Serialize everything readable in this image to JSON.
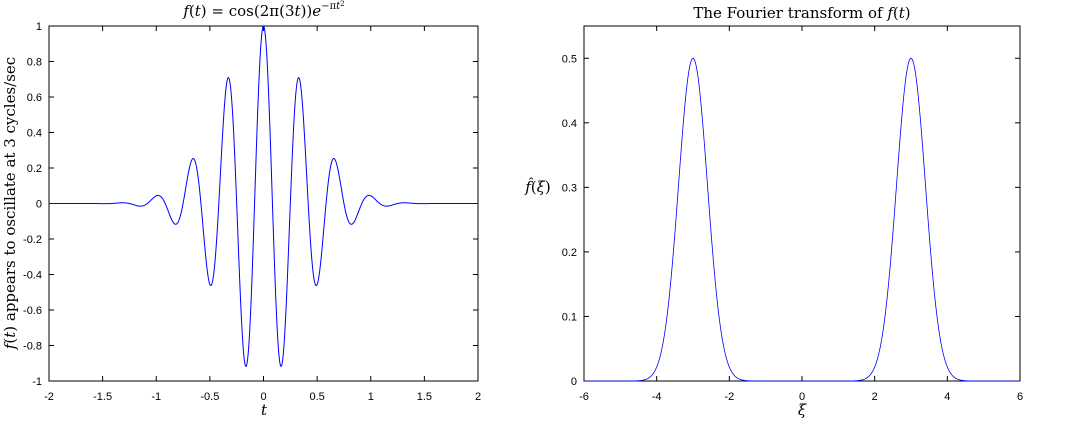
{
  "chart_data": [
    {
      "type": "line",
      "title": "f(t) = cos(2π(3t))e^{−πt²}",
      "xlabel": "t",
      "ylabel": "f(t) appears to oscillate at 3 cycles/sec",
      "xlim": [
        -2,
        2
      ],
      "ylim": [
        -1,
        1
      ],
      "xticks": [
        "-2",
        "-1.5",
        "-1",
        "-0.5",
        "0",
        "0.5",
        "1",
        "1.5",
        "2"
      ],
      "yticks": [
        "-1",
        "-0.8",
        "-0.6",
        "-0.4",
        "-0.2",
        "0",
        "0.2",
        "0.4",
        "0.6",
        "0.8",
        "1"
      ],
      "grid": false,
      "series": [
        {
          "color": "#0000ff",
          "x": [
            -2.0,
            -1.5,
            -1.333,
            -1.167,
            -1.0,
            -0.833,
            -0.667,
            -0.5,
            -0.333,
            -0.167,
            0.0,
            0.167,
            0.333,
            0.5,
            0.667,
            0.833,
            1.0,
            1.167,
            1.333,
            1.5,
            2.0
          ],
          "y": [
            0.0,
            0.0009,
            0.0038,
            -0.014,
            0.043,
            -0.113,
            0.248,
            -0.456,
            0.706,
            -0.916,
            1.0,
            -0.916,
            0.706,
            -0.456,
            0.248,
            -0.113,
            0.043,
            -0.014,
            0.0038,
            0.0009,
            0.0
          ]
        }
      ]
    },
    {
      "type": "line",
      "title": "The Fourier transform of f(t)",
      "xlabel": "ξ",
      "ylabel": "f̂(ξ)",
      "xlim": [
        -6,
        6
      ],
      "ylim": [
        0,
        0.55
      ],
      "xticks": [
        "-6",
        "-4",
        "-2",
        "0",
        "2",
        "4",
        "6"
      ],
      "yticks": [
        "0",
        "0.1",
        "0.2",
        "0.3",
        "0.4",
        "0.5"
      ],
      "grid": false,
      "series": [
        {
          "color": "#0000ff",
          "x": [
            -6.0,
            -5.0,
            -4.5,
            -4.0,
            -3.5,
            -3.0,
            -2.5,
            -2.0,
            -1.5,
            -1.0,
            0.0,
            1.0,
            1.5,
            2.0,
            2.5,
            3.0,
            3.5,
            4.0,
            4.5,
            5.0,
            6.0
          ],
          "y": [
            0.0,
            0.0,
            0.0004,
            0.022,
            0.228,
            0.5,
            0.228,
            0.022,
            0.0004,
            0.0,
            0.0,
            0.0,
            0.0004,
            0.022,
            0.228,
            0.5,
            0.228,
            0.022,
            0.0004,
            0.0,
            0.0
          ]
        }
      ]
    }
  ]
}
